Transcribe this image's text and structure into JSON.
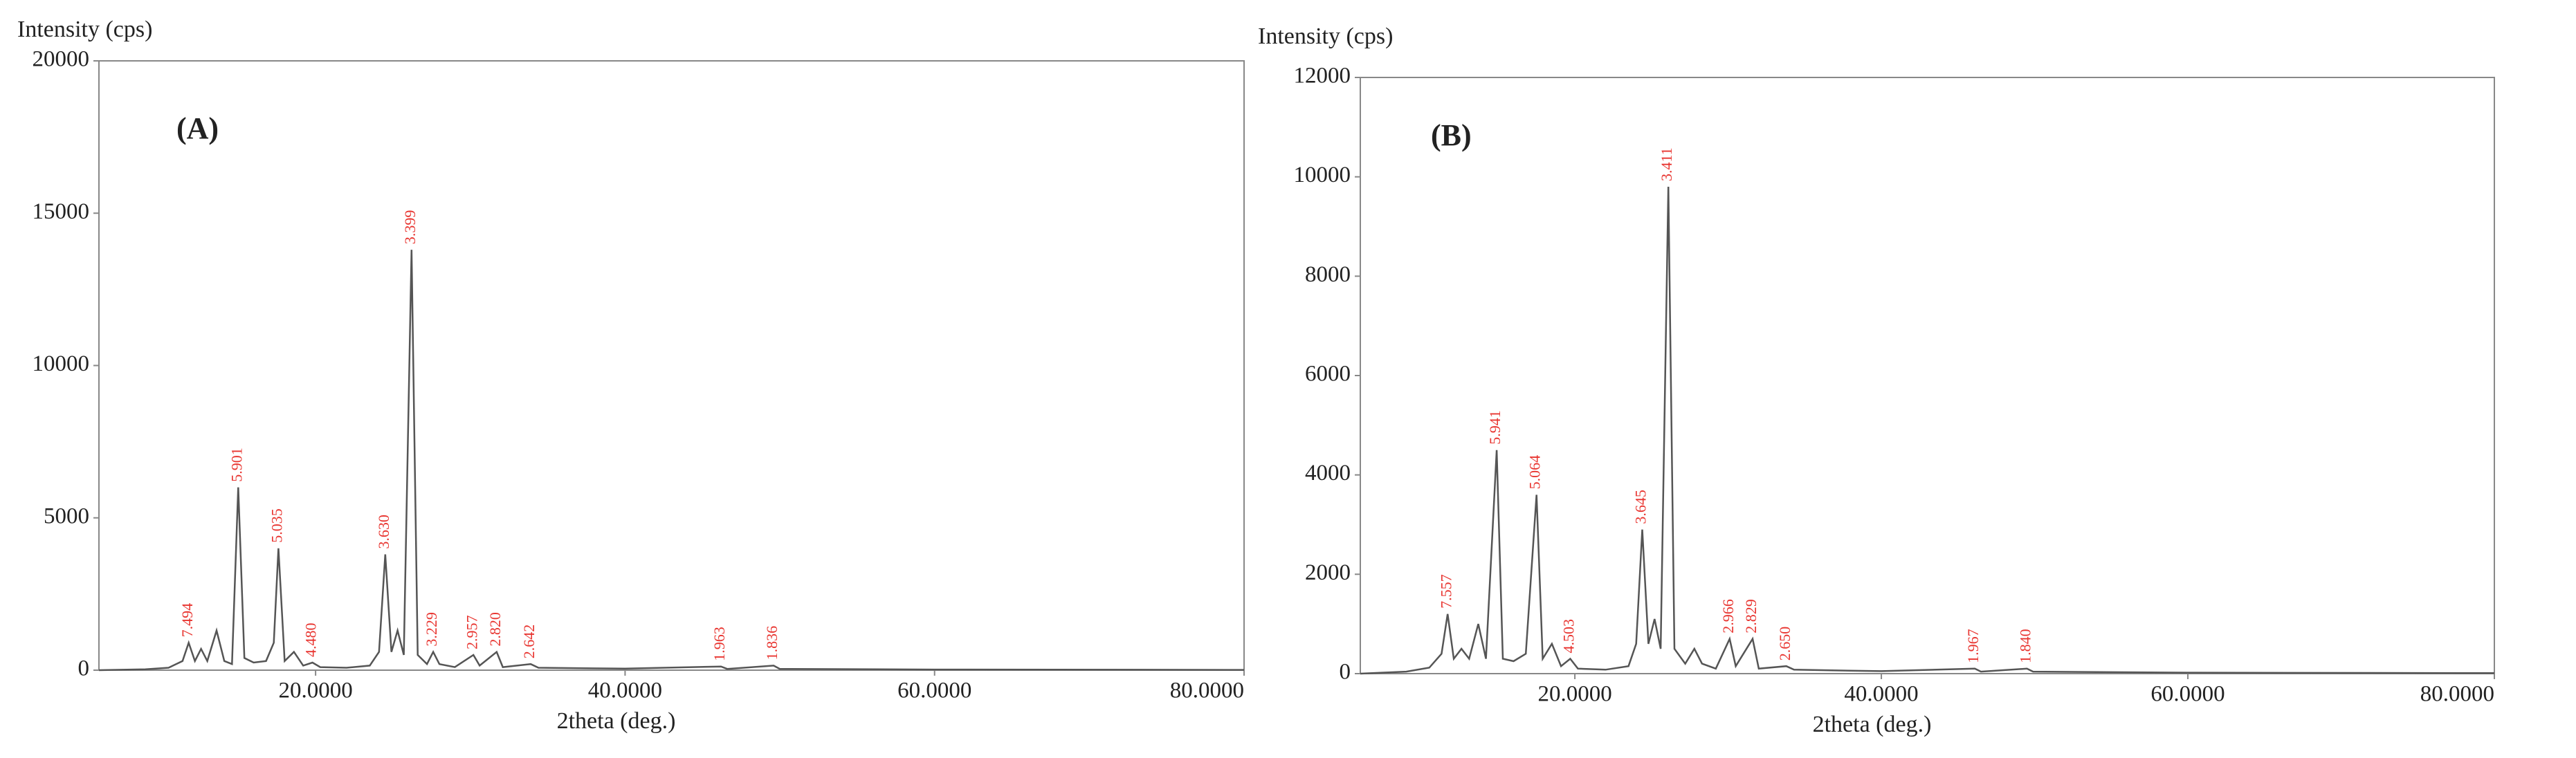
{
  "chart_data": [
    {
      "type": "line",
      "panel_label": "(A)",
      "y_label": "Intensity (cps)",
      "x_label": "2theta (deg.)",
      "xlim": [
        6,
        80
      ],
      "ylim": [
        0,
        20000
      ],
      "xticks": [
        {
          "value": 20,
          "label": "20.0000"
        },
        {
          "value": 40,
          "label": "40.0000"
        },
        {
          "value": 60,
          "label": "60.0000"
        },
        {
          "value": 80,
          "label": "80.0000"
        }
      ],
      "yticks": [
        0,
        5000,
        10000,
        15000,
        20000
      ],
      "label_color": "#e8342f",
      "series": [
        {
          "color": "#555555",
          "x": [
            6,
            9,
            10.5,
            11.4,
            11.8,
            12.2,
            12.6,
            13,
            13.6,
            14.1,
            14.6,
            15.0,
            15.4,
            16,
            16.8,
            17.3,
            17.6,
            18,
            18.6,
            19.2,
            19.8,
            20.3,
            22,
            23.5,
            24.1,
            24.5,
            24.9,
            25.3,
            25.7,
            26.2,
            26.6,
            27.2,
            27.6,
            28,
            29,
            30.2,
            30.6,
            31.7,
            32.1,
            33.9,
            34.4,
            38,
            40,
            46.2,
            46.6,
            49.6,
            50,
            60,
            80
          ],
          "values": [
            0,
            30,
            80,
            300,
            900,
            300,
            700,
            300,
            1300,
            300,
            200,
            6000,
            400,
            250,
            300,
            900,
            4000,
            300,
            600,
            150,
            250,
            100,
            80,
            150,
            600,
            3800,
            600,
            1300,
            500,
            13800,
            500,
            200,
            600,
            200,
            100,
            500,
            150,
            600,
            100,
            200,
            80,
            60,
            50,
            120,
            40,
            150,
            40,
            20,
            10
          ]
        }
      ],
      "peaks": {
        "x": [
          11.8,
          15.0,
          17.6,
          19.8,
          24.5,
          26.2,
          27.6,
          30.2,
          31.7,
          33.9,
          46.2,
          49.6
        ],
        "y": [
          900,
          6000,
          4000,
          250,
          3800,
          13800,
          600,
          500,
          600,
          200,
          120,
          150
        ],
        "labels": [
          "7.494",
          "5.901",
          "5.035",
          "4.480",
          "3.630",
          "3.399",
          "3.229",
          "2.957",
          "2.820",
          "2.642",
          "1.963",
          "1.836"
        ]
      }
    },
    {
      "type": "line",
      "panel_label": "(B)",
      "y_label": "Intensity (cps)",
      "x_label": "2theta (deg.)",
      "xlim": [
        6,
        80
      ],
      "ylim": [
        0,
        12000
      ],
      "xticks": [
        {
          "value": 20,
          "label": "20.0000"
        },
        {
          "value": 40,
          "label": "40.0000"
        },
        {
          "value": 60,
          "label": "60.0000"
        },
        {
          "value": 80,
          "label": "80.0000"
        }
      ],
      "yticks": [
        0,
        2000,
        4000,
        6000,
        8000,
        10000,
        12000
      ],
      "label_color": "#e8342f",
      "series": [
        {
          "color": "#555555",
          "x": [
            6,
            9,
            10.5,
            11.3,
            11.7,
            12.1,
            12.6,
            13.1,
            13.7,
            14.2,
            14.9,
            15.3,
            16,
            16.8,
            17.5,
            17.9,
            18.5,
            19.1,
            19.7,
            20.2,
            22,
            23.5,
            24.0,
            24.4,
            24.8,
            25.2,
            25.6,
            26.1,
            26.5,
            27.2,
            27.8,
            28.3,
            29.2,
            30.1,
            30.5,
            31.6,
            32.0,
            33.8,
            34.3,
            38,
            40,
            46.1,
            46.5,
            49.5,
            49.9,
            60,
            80
          ],
          "values": [
            0,
            40,
            120,
            400,
            1200,
            300,
            500,
            300,
            1000,
            300,
            4500,
            300,
            250,
            400,
            3600,
            300,
            600,
            150,
            300,
            100,
            80,
            150,
            600,
            2900,
            600,
            1100,
            500,
            9800,
            500,
            200,
            500,
            200,
            100,
            700,
            150,
            700,
            100,
            150,
            80,
            60,
            50,
            100,
            40,
            100,
            40,
            20,
            10
          ]
        }
      ],
      "peaks": {
        "x": [
          11.7,
          14.9,
          17.5,
          19.7,
          24.4,
          26.1,
          30.1,
          31.6,
          33.8,
          46.1,
          49.5
        ],
        "y": [
          1200,
          4500,
          3600,
          300,
          2900,
          9800,
          700,
          700,
          150,
          100,
          100
        ],
        "labels": [
          "7.557",
          "5.941",
          "5.064",
          "4.503",
          "3.645",
          "3.411",
          "2.966",
          "2.829",
          "2.650",
          "1.967",
          "1.840"
        ]
      }
    }
  ]
}
